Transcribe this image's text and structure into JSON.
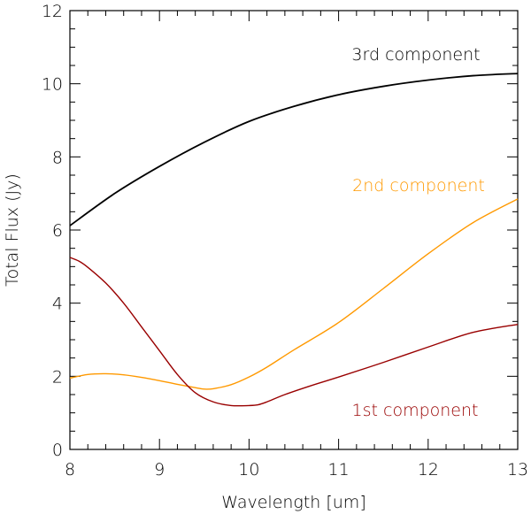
{
  "chart_data": {
    "type": "line",
    "title": "",
    "xlabel": "Wavelength [um]",
    "ylabel": "Total Flux (Jy)",
    "xlim": [
      8,
      13
    ],
    "ylim": [
      0,
      12
    ],
    "xticks": [
      8,
      9,
      10,
      11,
      12,
      13
    ],
    "yticks": [
      0,
      2,
      4,
      6,
      8,
      10,
      12
    ],
    "xtick_labels": [
      "8",
      "9",
      "10",
      "11",
      "12",
      "13"
    ],
    "ytick_labels": [
      "0",
      "2",
      "4",
      "6",
      "8",
      "10",
      "12"
    ],
    "grid": false,
    "series": [
      {
        "name": "3rd component",
        "color": "#000000",
        "x": [
          8.0,
          8.5,
          9.0,
          9.5,
          10.0,
          10.5,
          11.0,
          11.5,
          12.0,
          12.5,
          13.0
        ],
        "y": [
          6.12,
          7.0,
          7.74,
          8.4,
          8.97,
          9.38,
          9.7,
          9.93,
          10.1,
          10.22,
          10.28
        ]
      },
      {
        "name": "2nd component",
        "color": "#ff9900",
        "x": [
          8.0,
          8.2,
          8.4,
          8.6,
          8.8,
          9.0,
          9.2,
          9.4,
          9.5,
          9.6,
          9.8,
          10.0,
          10.2,
          10.5,
          11.0,
          11.5,
          12.0,
          12.5,
          13.0
        ],
        "y": [
          1.95,
          2.05,
          2.07,
          2.04,
          1.97,
          1.88,
          1.78,
          1.69,
          1.65,
          1.66,
          1.77,
          1.98,
          2.25,
          2.72,
          3.47,
          4.4,
          5.35,
          6.2,
          6.85
        ]
      },
      {
        "name": "1st component",
        "color": "#990000",
        "x": [
          8.0,
          8.1,
          8.2,
          8.4,
          8.6,
          8.8,
          9.0,
          9.2,
          9.4,
          9.6,
          9.8,
          10.0,
          10.1,
          10.2,
          10.4,
          10.7,
          11.0,
          11.5,
          12.0,
          12.5,
          13.0
        ],
        "y": [
          5.25,
          5.15,
          4.98,
          4.55,
          4.0,
          3.35,
          2.7,
          2.05,
          1.55,
          1.3,
          1.2,
          1.2,
          1.22,
          1.3,
          1.5,
          1.75,
          1.98,
          2.38,
          2.8,
          3.2,
          3.42
        ]
      }
    ],
    "annotations": [
      {
        "text": "3rd component",
        "series": "3rd component",
        "color": "#000000"
      },
      {
        "text": "2nd component",
        "series": "2nd component",
        "color": "#ff9900"
      },
      {
        "text": "1st component",
        "series": "1st component",
        "color": "#990000"
      }
    ]
  }
}
